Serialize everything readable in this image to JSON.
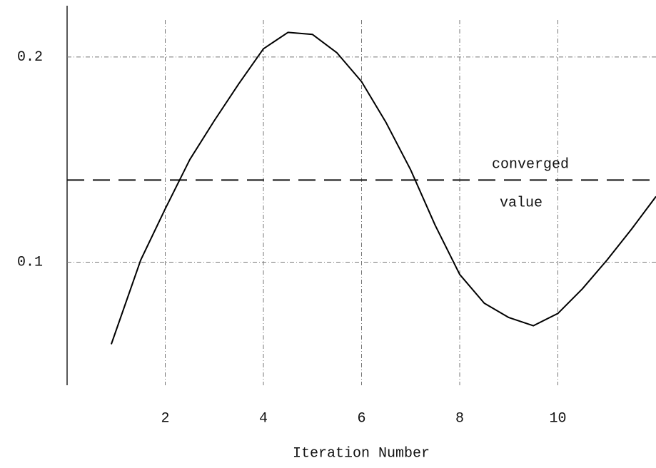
{
  "chart_data": {
    "type": "line",
    "x": [
      0.9,
      1.5,
      2,
      2.5,
      3,
      3.5,
      4,
      4.5,
      5,
      5.5,
      6,
      6.5,
      7,
      7.5,
      8,
      8.5,
      9,
      9.5,
      10,
      10.5,
      11,
      11.5,
      12
    ],
    "values": [
      0.06,
      0.101,
      0.126,
      0.15,
      0.169,
      0.187,
      0.204,
      0.212,
      0.211,
      0.202,
      0.188,
      0.168,
      0.145,
      0.118,
      0.094,
      0.08,
      0.073,
      0.069,
      0.075,
      0.087,
      0.101,
      0.116,
      0.132
    ],
    "color": "#000000",
    "xlabel": "Iteration Number",
    "xlim": [
      0,
      12
    ],
    "xticks": [
      2,
      4,
      6,
      8,
      10
    ],
    "ylim": [
      0.04,
      0.225
    ],
    "yticks": [
      0.1,
      0.2
    ],
    "grid": true,
    "reference_line": {
      "value": 0.14,
      "label_lines": [
        "converged",
        "value"
      ]
    }
  }
}
